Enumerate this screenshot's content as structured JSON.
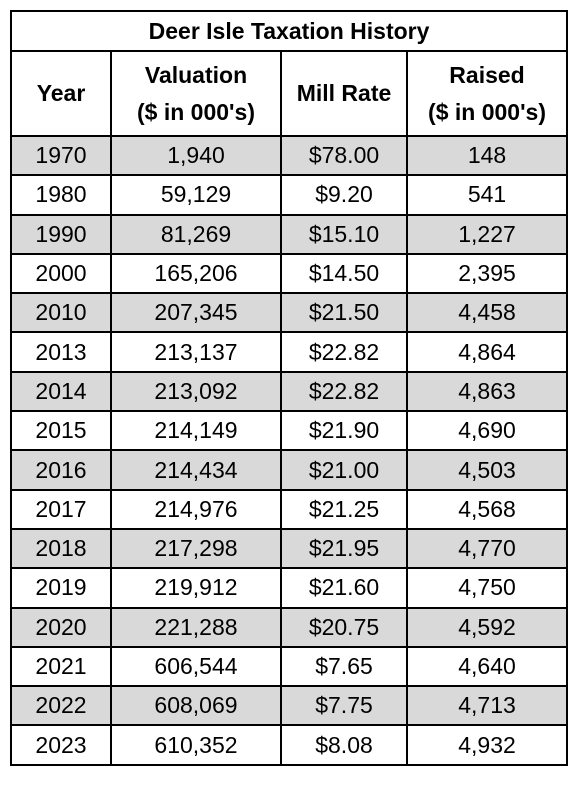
{
  "table": {
    "title": "Deer Isle Taxation History",
    "headers": [
      {
        "line1": "Year",
        "line2": ""
      },
      {
        "line1": "Valuation",
        "line2": "($ in 000's)"
      },
      {
        "line1": "Mill Rate",
        "line2": ""
      },
      {
        "line1": "Raised",
        "line2": "($ in 000's)"
      }
    ],
    "rows": [
      [
        "1970",
        "1,940",
        "$78.00",
        "148"
      ],
      [
        "1980",
        "59,129",
        "$9.20",
        "541"
      ],
      [
        "1990",
        "81,269",
        "$15.10",
        "1,227"
      ],
      [
        "2000",
        "165,206",
        "$14.50",
        "2,395"
      ],
      [
        "2010",
        "207,345",
        "$21.50",
        "4,458"
      ],
      [
        "2013",
        "213,137",
        "$22.82",
        "4,864"
      ],
      [
        "2014",
        "213,092",
        "$22.82",
        "4,863"
      ],
      [
        "2015",
        "214,149",
        "$21.90",
        "4,690"
      ],
      [
        "2016",
        "214,434",
        "$21.00",
        "4,503"
      ],
      [
        "2017",
        "214,976",
        "$21.25",
        "4,568"
      ],
      [
        "2018",
        "217,298",
        "$21.95",
        "4,770"
      ],
      [
        "2019",
        "219,912",
        "$21.60",
        "4,750"
      ],
      [
        "2020",
        "221,288",
        "$20.75",
        "4,592"
      ],
      [
        "2021",
        "606,544",
        "$7.65",
        "4,640"
      ],
      [
        "2022",
        "608,069",
        "$7.75",
        "4,713"
      ],
      [
        "2023",
        "610,352",
        "$8.08",
        "4,932"
      ]
    ],
    "shade_color": "#d9d9d9"
  }
}
